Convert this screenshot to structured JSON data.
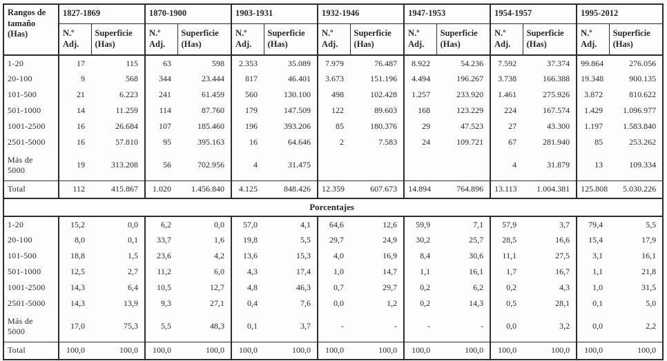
{
  "table": {
    "corner_header": "Rangos de tamaño (Has)",
    "periods": [
      "1827-1869",
      "1870-1900",
      "1903-1931",
      "1932-1946",
      "1947-1953",
      "1954-1957",
      "1995-2012"
    ],
    "subcol_n": "N.º Adj.",
    "subcol_sup": "Superficie (Has)",
    "percent_title": "Porcentajes",
    "absolute_rows": [
      {
        "label": "1-20",
        "cells": [
          "17",
          "115",
          "63",
          "598",
          "2.353",
          "35.089",
          "7.979",
          "76.487",
          "8.922",
          "54.236",
          "7.592",
          "37.374",
          "99.864",
          "276.056"
        ]
      },
      {
        "label": "20-100",
        "cells": [
          "9",
          "568",
          "344",
          "23.444",
          "817",
          "46.401",
          "3.673",
          "151.196",
          "4.494",
          "196.267",
          "3.738",
          "166.388",
          "19.348",
          "900.135"
        ]
      },
      {
        "label": "101-500",
        "cells": [
          "21",
          "6.223",
          "241",
          "61.459",
          "560",
          "130.100",
          "498",
          "102.428",
          "1.257",
          "233.920",
          "1.461",
          "275.926",
          "3.872",
          "810.622"
        ]
      },
      {
        "label": "501-1000",
        "cells": [
          "14",
          "11.259",
          "114",
          "87.760",
          "179",
          "147.509",
          "122",
          "89.603",
          "168",
          "123.229",
          "224",
          "167.574",
          "1.429",
          "1.096.977"
        ]
      },
      {
        "label": "1001-2500",
        "cells": [
          "16",
          "26.684",
          "107",
          "185.460",
          "196",
          "393.206",
          "85",
          "180.376",
          "29",
          "47.523",
          "27",
          "43.300",
          "1.197",
          "1.583.840"
        ]
      },
      {
        "label": "2501-5000",
        "cells": [
          "16",
          "57.810",
          "95",
          "395.163",
          "16",
          "64.646",
          "2",
          "7.583",
          "24",
          "109.721",
          "67",
          "281.940",
          "85",
          "253.262"
        ]
      },
      {
        "label": "Más de 5000",
        "cells": [
          "19",
          "313.208",
          "56",
          "702.956",
          "4",
          "31.475",
          "",
          "",
          "",
          "",
          "4",
          "31.879",
          "13",
          "109.334"
        ],
        "tall": true
      },
      {
        "label": "Total",
        "cells": [
          "112",
          "415.867",
          "1.020",
          "1.456.840",
          "4.125",
          "848.426",
          "12.359",
          "607.673",
          "14.894",
          "764.896",
          "13.113",
          "1.004.381",
          "125.808",
          "5.030.226"
        ],
        "total": true
      }
    ],
    "percent_rows": [
      {
        "label": "1-20",
        "cells": [
          "15,2",
          "0,0",
          "6,2",
          "0,0",
          "57,0",
          "4,1",
          "64,6",
          "12,6",
          "59,9",
          "7,1",
          "57,9",
          "3,7",
          "79,4",
          "5,5"
        ]
      },
      {
        "label": "20-100",
        "cells": [
          "8,0",
          "0,1",
          "33,7",
          "1,6",
          "19,8",
          "5,5",
          "29,7",
          "24,9",
          "30,2",
          "25,7",
          "28,5",
          "16,6",
          "15,4",
          "17,9"
        ]
      },
      {
        "label": "101-500",
        "cells": [
          "18,8",
          "1,5",
          "23,6",
          "4,2",
          "13,6",
          "15,3",
          "4,0",
          "16,9",
          "8,4",
          "30,6",
          "11,1",
          "27,5",
          "3,1",
          "16,1"
        ]
      },
      {
        "label": "501-1000",
        "cells": [
          "12,5",
          "2,7",
          "11,2",
          "6,0",
          "4,3",
          "17,4",
          "1,0",
          "14,7",
          "1,1",
          "16,1",
          "1,7",
          "16,7",
          "1,1",
          "21,8"
        ]
      },
      {
        "label": "1001-2500",
        "cells": [
          "14,3",
          "6,4",
          "10,5",
          "12,7",
          "4,8",
          "46,3",
          "0,7",
          "29,7",
          "0,2",
          "6,2",
          "0,2",
          "4,3",
          "1,0",
          "31,5"
        ]
      },
      {
        "label": "2501-5000",
        "cells": [
          "14,3",
          "13,9",
          "9,3",
          "27,1",
          "0,4",
          "7,6",
          "0,0",
          "1,2",
          "0,2",
          "14,3",
          "0,5",
          "28,1",
          "0,1",
          "5,0"
        ]
      },
      {
        "label": "Más de 5000",
        "cells": [
          "17,0",
          "75,3",
          "5,5",
          "48,3",
          "0,1",
          "3,7",
          "-",
          "-",
          "-",
          "-",
          "0,0",
          "3,2",
          "0,0",
          "2,2"
        ],
        "tall": true
      },
      {
        "label": "Total",
        "cells": [
          "100,0",
          "100,0",
          "100,0",
          "100,0",
          "100,0",
          "100,0",
          "100,0",
          "100,0",
          "100,0",
          "100,0",
          "100,0",
          "100,0",
          "100,0",
          "100,0"
        ],
        "total": true
      }
    ]
  }
}
